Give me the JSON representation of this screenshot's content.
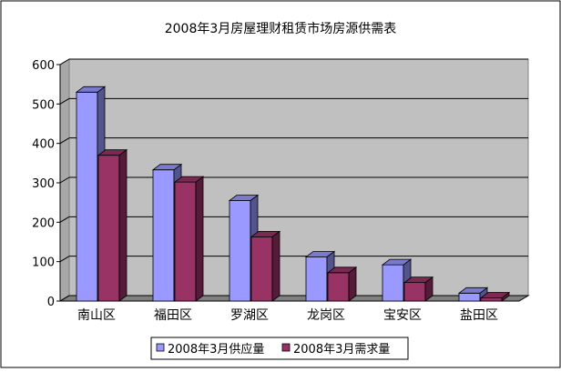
{
  "chart_data": {
    "type": "bar",
    "title": "2008年3月房屋理财租赁市场房源供需表",
    "xlabel": "",
    "ylabel": "",
    "categories": [
      "南山区",
      "福田区",
      "罗湖区",
      "龙岗区",
      "宝安区",
      "盐田区"
    ],
    "series": [
      {
        "name": "2008年3月供应量",
        "values": [
          530,
          333,
          255,
          112,
          92,
          20
        ],
        "color": "#9999ff"
      },
      {
        "name": "2008年3月需求量",
        "values": [
          370,
          302,
          163,
          72,
          47,
          8
        ],
        "color": "#993366"
      }
    ],
    "ylim": [
      0,
      600
    ],
    "yticks": [
      "0",
      "100",
      "200",
      "300",
      "400",
      "500",
      "600"
    ],
    "grid": true,
    "legend": "bottom",
    "three_d": true,
    "wall_color": "#c0c0c0",
    "floor_color": "#808080"
  }
}
